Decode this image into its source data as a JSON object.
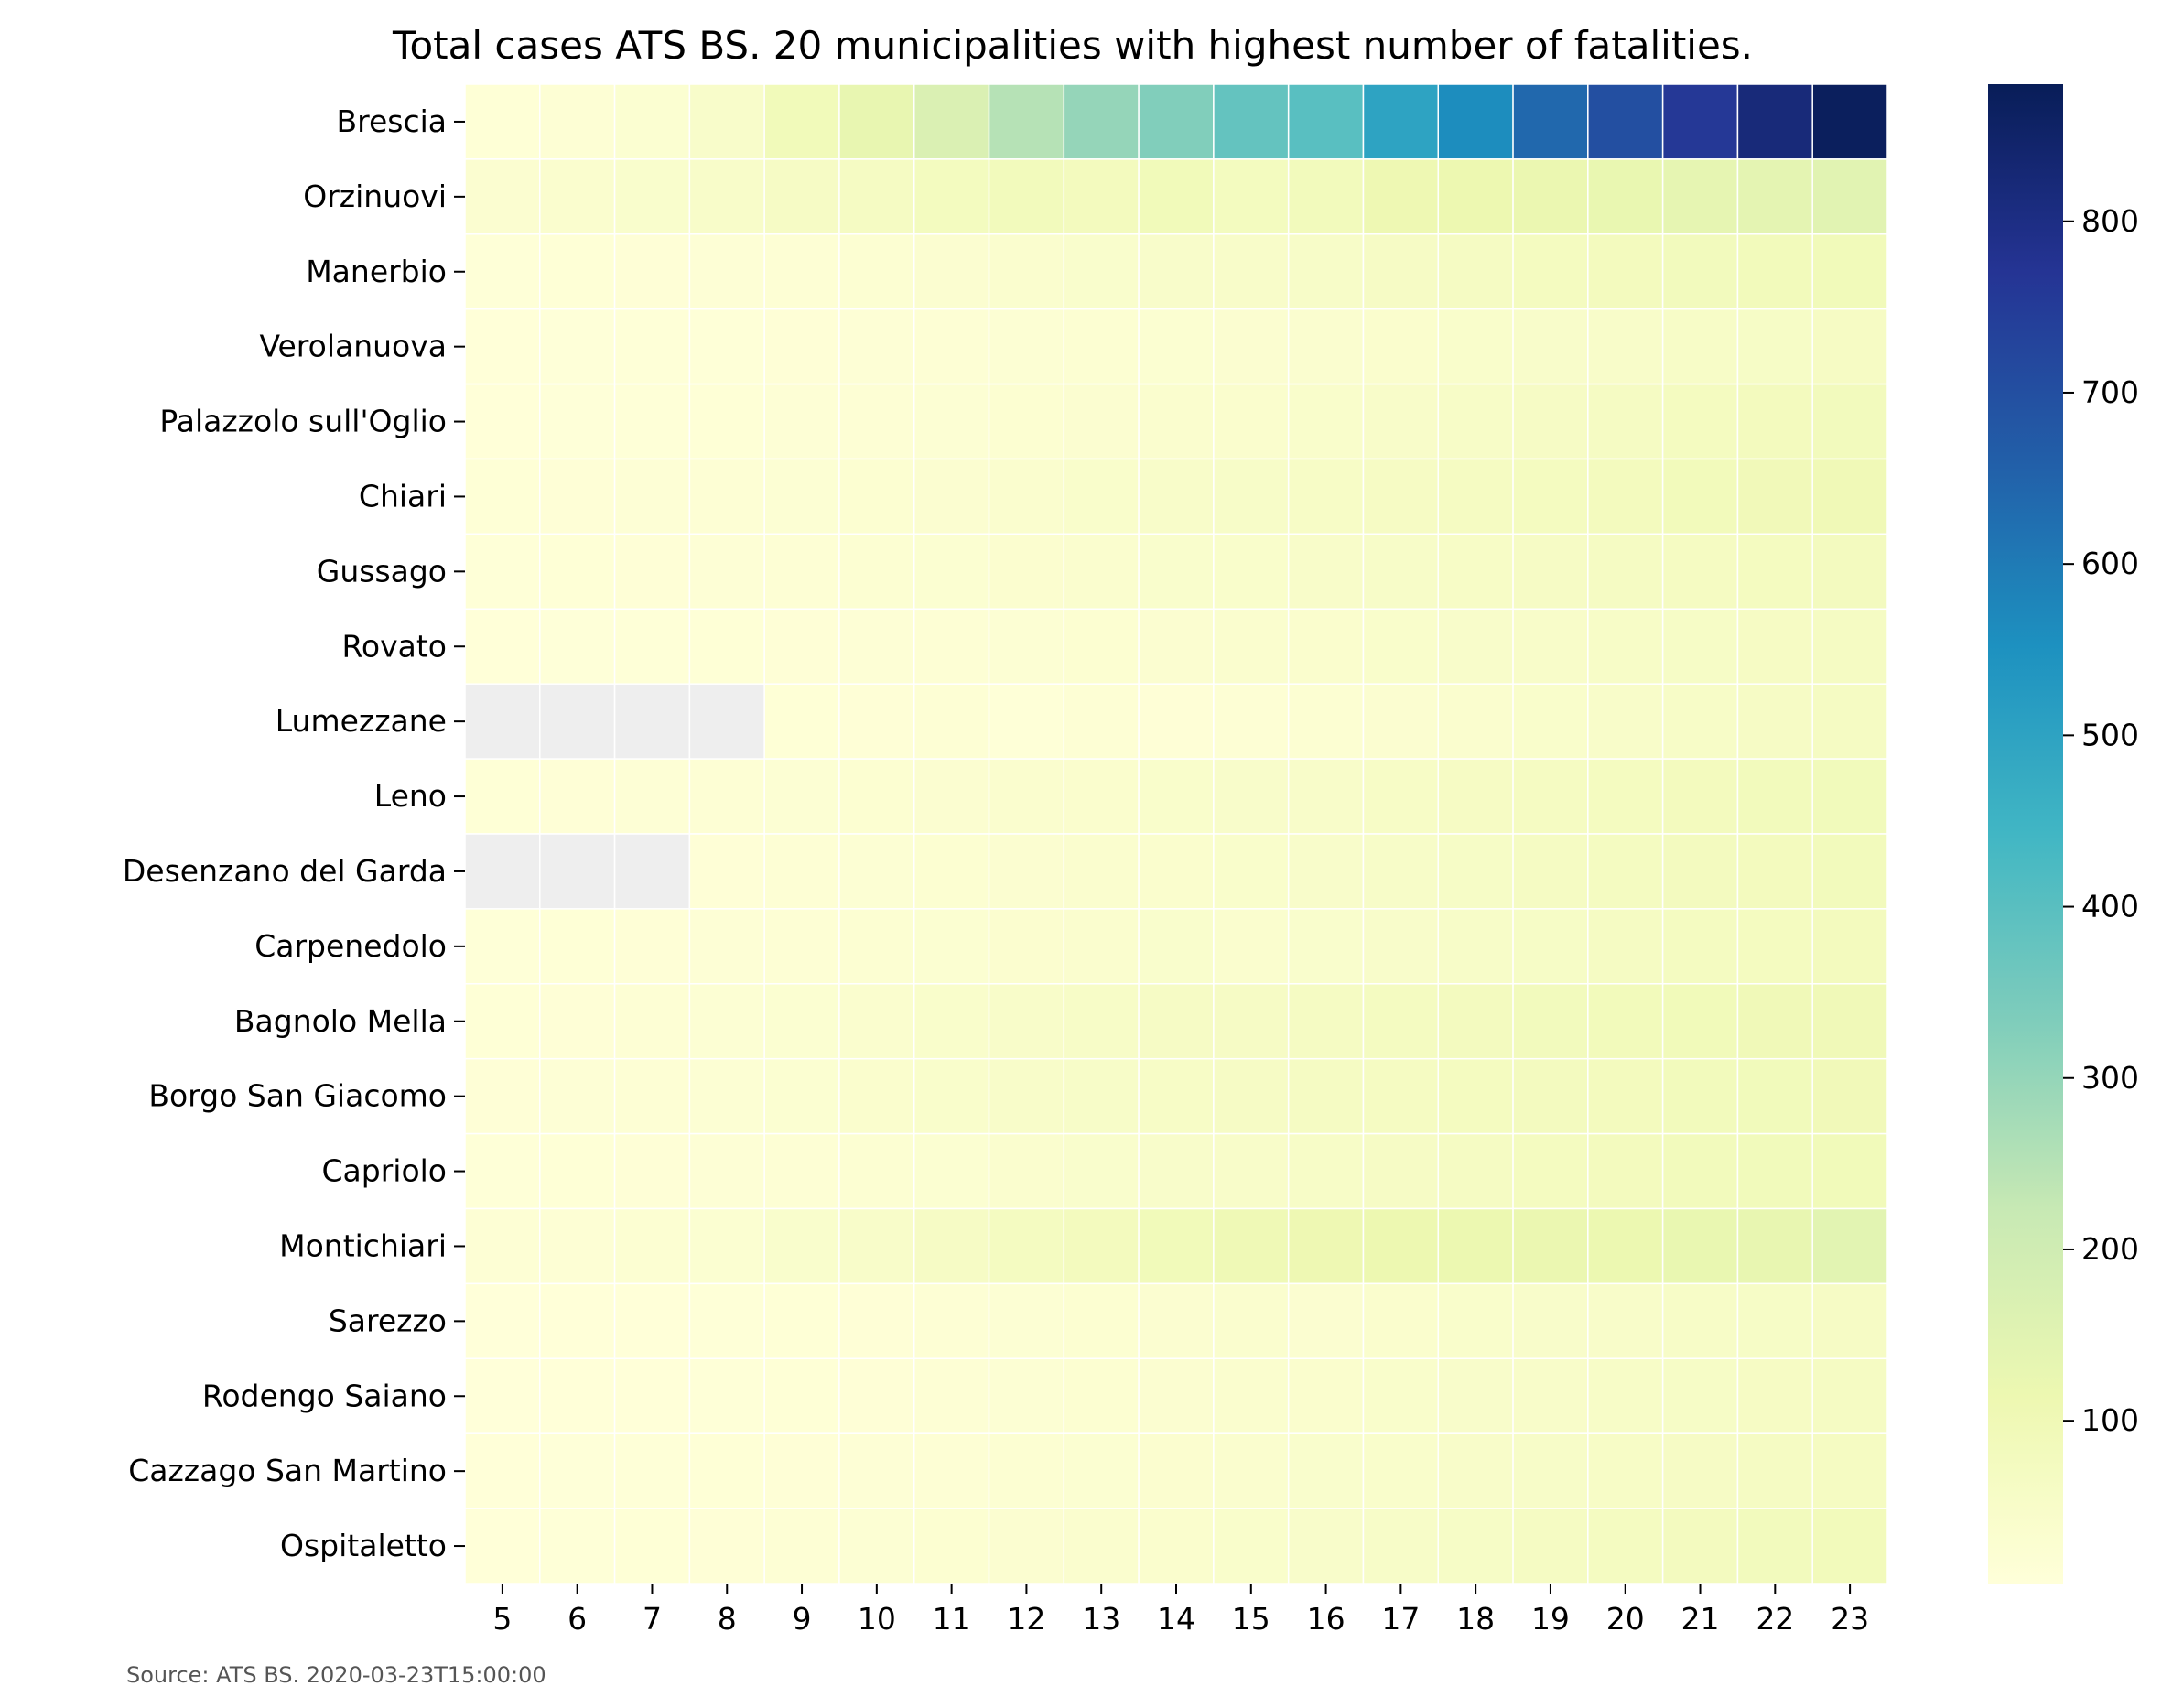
{
  "chart_data": {
    "type": "heatmap",
    "title": "Total cases ATS BS. 20 municipalities with highest number of fatalities.",
    "source": "Source: ATS BS. 2020-03-23T15:00:00",
    "colormap": "YlGnBu",
    "missing_color": "#eeeeee",
    "grid_line_color": "#ffffff",
    "x": [
      "5",
      "6",
      "7",
      "8",
      "9",
      "10",
      "11",
      "12",
      "13",
      "14",
      "15",
      "16",
      "17",
      "18",
      "19",
      "20",
      "21",
      "22",
      "23"
    ],
    "y": [
      "Brescia",
      "Orzinuovi",
      "Manerbio",
      "Verolanuova",
      "Palazzolo sull'Oglio",
      "Chiari",
      "Gussago",
      "Rovato",
      "Lumezzane",
      "Leno",
      "Desenzano del Garda",
      "Carpenedolo",
      "Bagnolo Mella",
      "Borgo San Giacomo",
      "Capriolo",
      "Montichiari",
      "Sarezzo",
      "Rodengo Saiano",
      "Cazzago San Martino",
      "Ospitaletto"
    ],
    "values": [
      [
        12,
        18,
        28,
        45,
        90,
        130,
        170,
        250,
        300,
        330,
        380,
        400,
        500,
        560,
        640,
        700,
        760,
        820,
        870
      ],
      [
        30,
        35,
        40,
        50,
        60,
        65,
        75,
        85,
        80,
        90,
        75,
        85,
        110,
        115,
        120,
        125,
        135,
        140,
        150
      ],
      [
        10,
        12,
        14,
        16,
        20,
        24,
        30,
        36,
        40,
        45,
        48,
        52,
        60,
        66,
        72,
        78,
        82,
        86,
        90
      ],
      [
        8,
        9,
        10,
        11,
        13,
        15,
        18,
        22,
        25,
        28,
        30,
        33,
        38,
        42,
        46,
        50,
        54,
        58,
        62
      ],
      [
        8,
        9,
        10,
        12,
        15,
        18,
        22,
        26,
        30,
        34,
        38,
        42,
        48,
        54,
        60,
        66,
        72,
        78,
        82
      ],
      [
        12,
        14,
        16,
        18,
        22,
        26,
        30,
        36,
        42,
        48,
        52,
        56,
        62,
        68,
        74,
        80,
        86,
        92,
        98
      ],
      [
        10,
        12,
        14,
        16,
        20,
        24,
        28,
        32,
        36,
        40,
        44,
        48,
        52,
        56,
        60,
        64,
        68,
        72,
        76
      ],
      [
        8,
        9,
        10,
        12,
        14,
        16,
        18,
        22,
        26,
        30,
        34,
        38,
        42,
        46,
        50,
        54,
        58,
        62,
        66
      ],
      [
        null,
        null,
        null,
        null,
        12,
        14,
        20,
        10,
        18,
        14,
        20,
        24,
        30,
        36,
        42,
        48,
        54,
        60,
        64
      ],
      [
        12,
        14,
        16,
        18,
        22,
        26,
        30,
        34,
        38,
        42,
        46,
        50,
        56,
        62,
        68,
        74,
        80,
        84,
        88
      ],
      [
        null,
        null,
        null,
        14,
        18,
        22,
        26,
        30,
        34,
        38,
        42,
        46,
        52,
        58,
        64,
        70,
        76,
        80,
        84
      ],
      [
        10,
        12,
        14,
        16,
        20,
        24,
        28,
        32,
        36,
        40,
        36,
        40,
        46,
        52,
        58,
        64,
        70,
        74,
        78
      ],
      [
        12,
        14,
        18,
        22,
        28,
        36,
        42,
        48,
        54,
        60,
        60,
        64,
        70,
        76,
        82,
        86,
        90,
        94,
        96
      ],
      [
        14,
        16,
        18,
        22,
        28,
        38,
        44,
        48,
        52,
        56,
        60,
        64,
        68,
        72,
        76,
        80,
        84,
        88,
        92
      ],
      [
        10,
        12,
        14,
        16,
        20,
        24,
        28,
        34,
        40,
        46,
        50,
        54,
        60,
        66,
        72,
        78,
        84,
        88,
        90
      ],
      [
        18,
        20,
        24,
        28,
        40,
        50,
        60,
        70,
        80,
        90,
        100,
        108,
        115,
        118,
        120,
        118,
        125,
        130,
        145
      ],
      [
        6,
        7,
        8,
        10,
        12,
        14,
        18,
        22,
        26,
        30,
        34,
        30,
        38,
        42,
        46,
        50,
        54,
        58,
        60
      ],
      [
        6,
        7,
        8,
        10,
        12,
        14,
        18,
        22,
        26,
        30,
        34,
        38,
        42,
        46,
        50,
        54,
        58,
        62,
        66
      ],
      [
        8,
        9,
        10,
        12,
        14,
        16,
        20,
        24,
        28,
        32,
        36,
        40,
        44,
        48,
        52,
        56,
        60,
        64,
        68
      ],
      [
        8,
        10,
        12,
        14,
        18,
        22,
        26,
        30,
        34,
        38,
        42,
        46,
        52,
        58,
        64,
        70,
        76,
        82,
        86
      ]
    ],
    "vmin": 5,
    "vmax": 880,
    "colorbar_ticks": [
      100,
      200,
      300,
      400,
      500,
      600,
      700,
      800
    ]
  }
}
